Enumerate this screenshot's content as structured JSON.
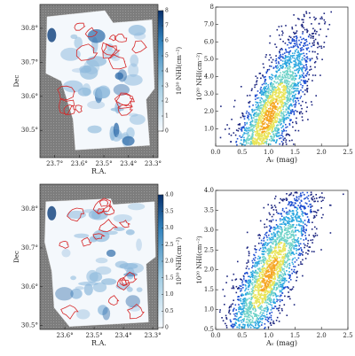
{
  "chart_data": [
    {
      "type": "map",
      "xlabel": "R.A.",
      "ylabel": "Dec",
      "xlim": [
        23.76,
        23.28
      ],
      "ylim": [
        30.42,
        30.87
      ],
      "xticks": [
        {
          "value": 23.7,
          "label": "23.7°"
        },
        {
          "value": 23.6,
          "label": "23.6°"
        },
        {
          "value": 23.5,
          "label": "23.5°"
        },
        {
          "value": 23.4,
          "label": "23.4°"
        },
        {
          "value": 23.3,
          "label": "23.3°"
        }
      ],
      "yticks": [
        {
          "value": 30.5,
          "label": "30.5°"
        },
        {
          "value": 30.6,
          "label": "30.6°"
        },
        {
          "value": 30.7,
          "label": "30.7°"
        },
        {
          "value": 30.8,
          "label": "30.8°"
        }
      ],
      "colorbar": {
        "label": "10²⁰ NHI(cm⁻²)",
        "lim": [
          0,
          8
        ],
        "ticks": [
          0,
          1,
          2,
          3,
          4,
          5,
          6,
          7,
          8
        ]
      }
    },
    {
      "type": "density",
      "xlabel": "Aᵥ (mag)",
      "ylabel": "10²⁰ NHI(cm⁻²)",
      "xlim": [
        0,
        2.5
      ],
      "ylim": [
        0,
        8
      ],
      "xticks": [
        {
          "value": 0,
          "label": "0.0"
        },
        0.5,
        {
          "value": 1,
          "label": "1.0"
        },
        1.5,
        {
          "value": 2,
          "label": "2.0"
        },
        2.5
      ],
      "yticks": [
        {
          "value": 1,
          "label": "1.0"
        },
        {
          "value": 2,
          "label": "2.0"
        },
        {
          "value": 3,
          "label": "3.0"
        },
        {
          "value": 4,
          "label": "4.0"
        },
        {
          "value": 5,
          "label": "5.0"
        },
        {
          "value": 6,
          "label": "6.0"
        },
        {
          "value": 7,
          "label": "7.0"
        },
        8
      ]
    },
    {
      "type": "map",
      "xlabel": "R.A.",
      "ylabel": "Dec",
      "xlim": [
        23.685,
        23.282
      ],
      "ylim": [
        30.49,
        30.864
      ],
      "xticks": [
        {
          "value": 23.6,
          "label": "23.6°"
        },
        {
          "value": 23.5,
          "label": "23.5°"
        },
        {
          "value": 23.4,
          "label": "23.4°"
        },
        {
          "value": 23.3,
          "label": "23.3°"
        }
      ],
      "yticks": [
        {
          "value": 30.5,
          "label": "30.5°"
        },
        {
          "value": 30.6,
          "label": "30.6°"
        },
        {
          "value": 30.7,
          "label": "30.7°"
        },
        {
          "value": 30.8,
          "label": "30.8°"
        }
      ],
      "colorbar": {
        "label": "10²⁰ NHI(cm⁻²)",
        "lim": [
          0,
          4
        ],
        "ticks": [
          0,
          0.5,
          {
            "value": 1,
            "label": "1.0"
          },
          1.5,
          {
            "value": 2,
            "label": "2.0"
          },
          2.5,
          {
            "value": 3,
            "label": "3.0"
          },
          3.5,
          {
            "value": 4,
            "label": "4.0"
          }
        ]
      }
    },
    {
      "type": "density",
      "xlabel": "Aᵥ (mag)",
      "ylabel": "10²⁰ NHI(cm⁻²)",
      "xlim": [
        0,
        2.5
      ],
      "ylim": [
        0.5,
        4
      ],
      "xticks": [
        {
          "value": 0,
          "label": "0.0"
        },
        0.5,
        {
          "value": 1,
          "label": "1.0"
        },
        1.5,
        {
          "value": 2,
          "label": "2.0"
        },
        2.5
      ],
      "yticks": [
        0.5,
        {
          "value": 1,
          "label": "1.0"
        },
        1.5,
        {
          "value": 2,
          "label": "2.0"
        },
        2.5,
        {
          "value": 3,
          "label": "3.0"
        },
        3.5,
        {
          "value": 4,
          "label": "4.0"
        }
      ]
    }
  ]
}
